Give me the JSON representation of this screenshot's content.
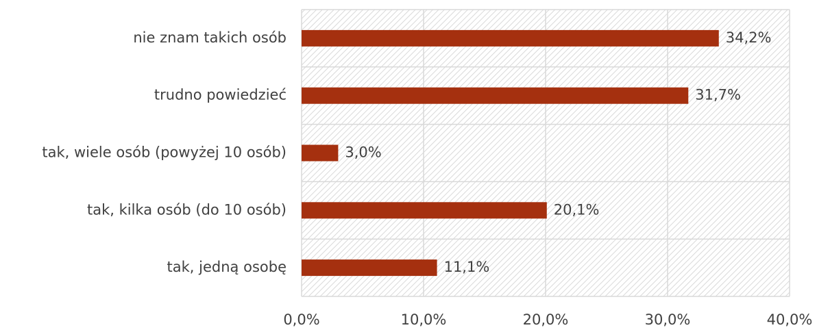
{
  "chart_data": {
    "type": "bar",
    "orientation": "horizontal",
    "categories": [
      "nie znam takich osób",
      "trudno powiedzieć",
      "tak, wiele osób (powyżej 10 osób)",
      "tak, kilka osób (do 10 osób)",
      "tak, jedną osobę"
    ],
    "values": [
      34.2,
      31.7,
      3.0,
      20.1,
      11.1
    ],
    "value_labels": [
      "34,2%",
      "31,7%",
      "3,0%",
      "20,1%",
      "11,1%"
    ],
    "color": "#a5300f",
    "xlim": [
      0,
      40
    ],
    "xticks": [
      {
        "value": 0,
        "label": "0,0%"
      },
      {
        "value": 10,
        "label": "10,0%"
      },
      {
        "value": 20,
        "label": "20,0%"
      },
      {
        "value": 30,
        "label": "30,0%"
      },
      {
        "value": 40,
        "label": "40,0%"
      }
    ],
    "grid": true
  }
}
